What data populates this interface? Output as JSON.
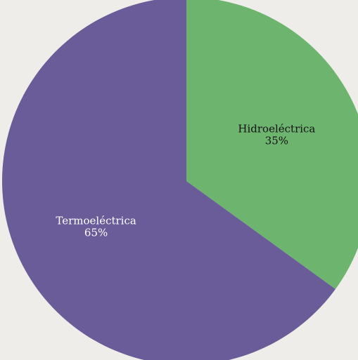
{
  "chart_data": {
    "type": "pie",
    "slices": [
      {
        "label": "Hidroeléctrica",
        "value": 35,
        "display": "35%",
        "color": "#6db46f",
        "label_color": "#111111"
      },
      {
        "label": "Termoeléctrica",
        "value": 65,
        "display": "65%",
        "color": "#6a5c98",
        "label_color": "#ffffff"
      }
    ]
  }
}
